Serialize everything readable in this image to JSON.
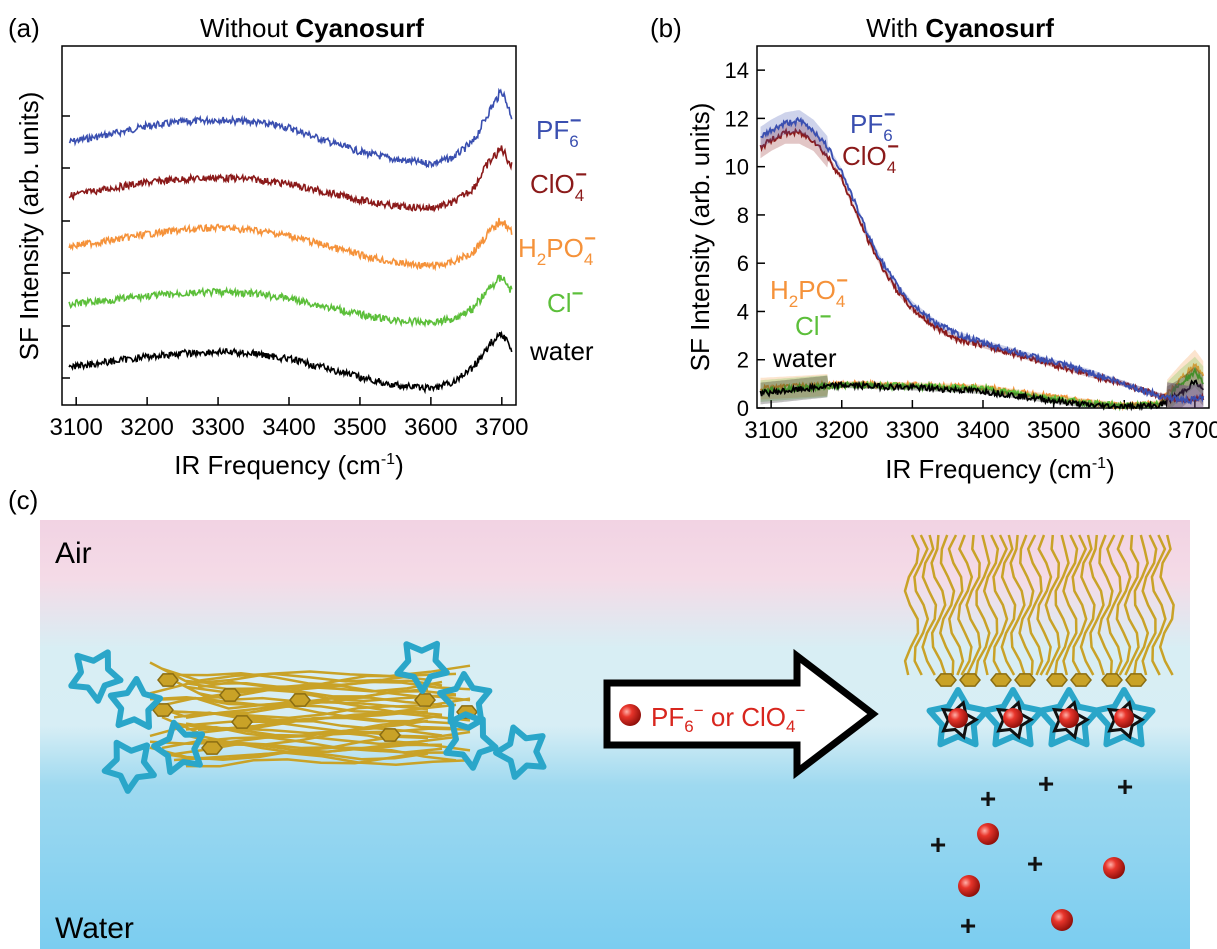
{
  "panel_a": {
    "label": "(a)",
    "title_prefix": "Without ",
    "title_bold": "Cyanosurf",
    "ylabel": "SF Intensity (arb. units)",
    "xlabel_main": "IR Frequency (cm",
    "xlabel_sup": "-1",
    "xlabel_end": ")"
  },
  "panel_b": {
    "label": "(b)",
    "title_prefix": "With ",
    "title_bold": "Cyanosurf",
    "ylabel": "SF Intensity (arb. units)",
    "xlabel_main": "IR Frequency (cm",
    "xlabel_sup": "-1",
    "xlabel_end": ")"
  },
  "panel_c": {
    "label": "(c)",
    "air_label": "Air",
    "water_label": "Water",
    "arrow_text_1": "PF",
    "arrow_text_sub": "6",
    "arrow_text_sup": "−",
    "arrow_text_2": " or ClO",
    "arrow_text_sub2": "4",
    "arrow_text_sup2": "−"
  },
  "legend_labels": {
    "pf6_base": "PF",
    "pf6_sub": "6",
    "pf6_sup": "−",
    "clo4_base": "ClO",
    "clo4_sub": "4",
    "clo4_sup": "−",
    "h2po4_a": "H",
    "h2po4_sub1": "2",
    "h2po4_b": "PO",
    "h2po4_sub2": "4",
    "h2po4_sup": "−",
    "cl_base": "Cl",
    "cl_sup": "−",
    "water": "water"
  },
  "colors": {
    "pf6": "#3a4fb0",
    "clo4": "#8b1a1a",
    "h2po4": "#f5923a",
    "cl": "#5cbf3a",
    "water": "#000000",
    "ion": "#d8261e",
    "tail": "#c9a227",
    "ring": "#2aa6c9"
  },
  "chart_data": [
    {
      "type": "line",
      "panel": "a",
      "xlim": [
        3080,
        3720
      ],
      "x_ticks": [
        3100,
        3200,
        3300,
        3400,
        3500,
        3600,
        3700
      ],
      "y_ticks_unlabeled": true,
      "note_offset": "vertically offset traces",
      "series": [
        {
          "name": "PF6-",
          "key": "pf6",
          "x": [
            3090,
            3150,
            3200,
            3250,
            3300,
            3350,
            3400,
            3450,
            3500,
            3550,
            3600,
            3630,
            3660,
            3680,
            3700,
            3715
          ],
          "y": [
            0.6,
            0.7,
            0.8,
            0.85,
            0.88,
            0.85,
            0.78,
            0.62,
            0.48,
            0.38,
            0.33,
            0.4,
            0.6,
            0.95,
            1.25,
            0.9
          ]
        },
        {
          "name": "ClO4-",
          "key": "clo4",
          "x": [
            3090,
            3150,
            3200,
            3250,
            3300,
            3350,
            3400,
            3450,
            3500,
            3550,
            3600,
            3630,
            3660,
            3680,
            3700,
            3715
          ],
          "y": [
            0.45,
            0.55,
            0.62,
            0.66,
            0.68,
            0.66,
            0.6,
            0.5,
            0.4,
            0.32,
            0.3,
            0.36,
            0.55,
            0.85,
            1.05,
            0.8
          ]
        },
        {
          "name": "H2PO4-",
          "key": "h2po4",
          "x": [
            3090,
            3150,
            3200,
            3250,
            3300,
            3350,
            3400,
            3450,
            3500,
            3550,
            3600,
            3630,
            3660,
            3680,
            3700,
            3715
          ],
          "y": [
            0.55,
            0.62,
            0.7,
            0.75,
            0.78,
            0.75,
            0.68,
            0.56,
            0.44,
            0.34,
            0.3,
            0.34,
            0.48,
            0.7,
            0.88,
            0.7
          ]
        },
        {
          "name": "Cl-",
          "key": "cl",
          "x": [
            3090,
            3150,
            3200,
            3250,
            3300,
            3350,
            3400,
            3450,
            3500,
            3550,
            3600,
            3630,
            3660,
            3680,
            3700,
            3715
          ],
          "y": [
            0.45,
            0.5,
            0.55,
            0.58,
            0.6,
            0.58,
            0.52,
            0.42,
            0.32,
            0.24,
            0.22,
            0.26,
            0.4,
            0.62,
            0.8,
            0.6
          ]
        },
        {
          "name": "water",
          "key": "water",
          "x": [
            3090,
            3150,
            3200,
            3250,
            3300,
            3350,
            3400,
            3450,
            3500,
            3550,
            3600,
            3630,
            3660,
            3680,
            3700,
            3715
          ],
          "y": [
            0.35,
            0.42,
            0.48,
            0.52,
            0.54,
            0.52,
            0.45,
            0.34,
            0.22,
            0.12,
            0.08,
            0.15,
            0.35,
            0.6,
            0.78,
            0.55
          ]
        }
      ]
    },
    {
      "type": "line",
      "panel": "b",
      "xlim": [
        3080,
        3720
      ],
      "ylim": [
        0,
        15
      ],
      "x_ticks": [
        3100,
        3200,
        3300,
        3400,
        3500,
        3600,
        3700
      ],
      "y_ticks": [
        0,
        2,
        4,
        6,
        8,
        10,
        12,
        14
      ],
      "series": [
        {
          "name": "PF6-",
          "key": "pf6",
          "x": [
            3085,
            3100,
            3120,
            3140,
            3160,
            3180,
            3200,
            3220,
            3240,
            3260,
            3280,
            3300,
            3330,
            3360,
            3400,
            3450,
            3500,
            3550,
            3600,
            3650,
            3690,
            3710
          ],
          "y": [
            11.2,
            11.5,
            11.8,
            11.9,
            11.5,
            10.8,
            9.8,
            8.4,
            7.0,
            5.9,
            5.0,
            4.3,
            3.6,
            3.1,
            2.7,
            2.3,
            1.9,
            1.5,
            1.0,
            0.5,
            0.3,
            0.4
          ]
        },
        {
          "name": "ClO4-",
          "key": "clo4",
          "x": [
            3085,
            3100,
            3120,
            3140,
            3160,
            3180,
            3200,
            3220,
            3240,
            3260,
            3280,
            3300,
            3330,
            3360,
            3400,
            3450,
            3500,
            3550,
            3600,
            3650,
            3690,
            3710
          ],
          "y": [
            10.8,
            11.1,
            11.4,
            11.4,
            11.1,
            10.4,
            9.5,
            8.1,
            6.8,
            5.7,
            4.8,
            4.1,
            3.4,
            2.9,
            2.6,
            2.2,
            1.8,
            1.4,
            1.0,
            0.5,
            0.3,
            0.4
          ]
        },
        {
          "name": "H2PO4-",
          "key": "h2po4",
          "x": [
            3085,
            3150,
            3200,
            3300,
            3400,
            3500,
            3550,
            3600,
            3650,
            3680,
            3700,
            3715
          ],
          "y": [
            0.8,
            0.9,
            1.0,
            0.95,
            0.85,
            0.45,
            0.25,
            0.1,
            0.2,
            1.2,
            1.8,
            1.2
          ]
        },
        {
          "name": "Cl-",
          "key": "cl",
          "x": [
            3085,
            3150,
            3200,
            3300,
            3400,
            3500,
            3550,
            3600,
            3650,
            3680,
            3700,
            3715
          ],
          "y": [
            0.7,
            0.85,
            0.95,
            0.9,
            0.8,
            0.4,
            0.2,
            0.08,
            0.15,
            1.0,
            1.5,
            1.0
          ]
        },
        {
          "name": "water",
          "key": "water",
          "x": [
            3085,
            3150,
            3200,
            3300,
            3400,
            3500,
            3550,
            3600,
            3650,
            3680,
            3700,
            3715
          ],
          "y": [
            0.6,
            0.8,
            0.95,
            0.85,
            0.7,
            0.3,
            0.12,
            0.05,
            0.1,
            0.6,
            1.1,
            0.6
          ]
        }
      ]
    }
  ]
}
